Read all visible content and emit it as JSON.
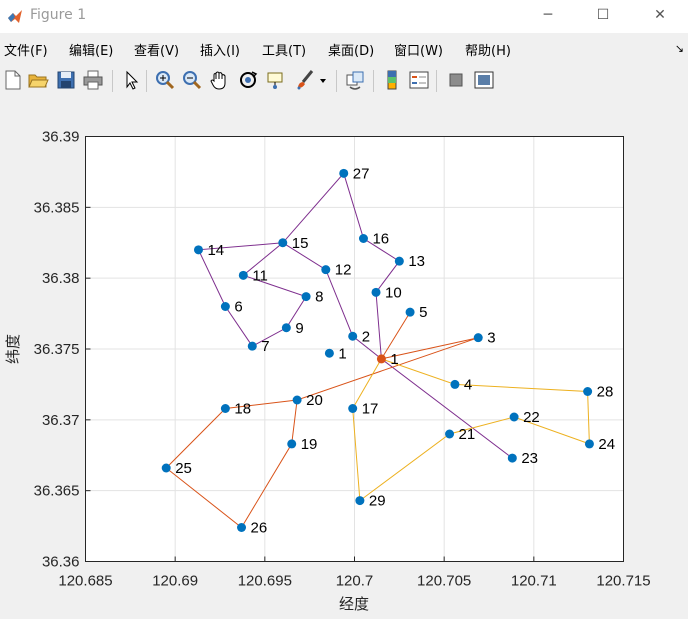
{
  "window": {
    "title": "Figure 1",
    "minimize_glyph": "─",
    "maximize_glyph": "☐",
    "close_glyph": "✕"
  },
  "menu": {
    "items": [
      "文件(F)",
      "编辑(E)",
      "查看(V)",
      "插入(I)",
      "工具(T)",
      "桌面(D)",
      "窗口(W)",
      "帮助(H)"
    ],
    "dock_glyph": "↘"
  },
  "toolbar": {
    "icons": [
      "new-figure-icon",
      "open-file-icon",
      "save-icon",
      "print-icon",
      "edit-plot-arrow-icon",
      "zoom-in-icon",
      "zoom-out-icon",
      "pan-hand-icon",
      "rotate-3d-icon",
      "data-cursor-icon",
      "brush-icon",
      "brush-dropdown-icon",
      "link-plot-icon",
      "colorbar-icon",
      "legend-icon",
      "hide-plot-tools-icon",
      "show-plot-tools-icon"
    ]
  },
  "colors": {
    "route_purple": "#7e2f8e",
    "route_orange": "#d95319",
    "route_yellow": "#edb120",
    "marker_blue": "#0072bd",
    "depot_orange": "#d95319"
  },
  "chart_data": {
    "type": "scatter",
    "xlabel": "经度",
    "ylabel": "纬度",
    "xlim": [
      120.685,
      120.715
    ],
    "ylim": [
      36.36,
      36.39
    ],
    "xticks": [
      "120.685",
      "120.69",
      "120.695",
      "120.7",
      "120.705",
      "120.71",
      "120.715"
    ],
    "yticks": [
      "36.36",
      "36.365",
      "36.37",
      "36.375",
      "36.38",
      "36.385",
      "36.39"
    ],
    "grid": true,
    "depot": {
      "label": "1",
      "x": 120.7015,
      "y": 36.3743
    },
    "points": [
      {
        "label": "1",
        "x": 120.6986,
        "y": 36.3747
      },
      {
        "label": "2",
        "x": 120.6999,
        "y": 36.3759
      },
      {
        "label": "3",
        "x": 120.7069,
        "y": 36.3758
      },
      {
        "label": "4",
        "x": 120.7056,
        "y": 36.3725
      },
      {
        "label": "5",
        "x": 120.7031,
        "y": 36.3776
      },
      {
        "label": "6",
        "x": 120.6928,
        "y": 36.378
      },
      {
        "label": "7",
        "x": 120.6943,
        "y": 36.3752
      },
      {
        "label": "8",
        "x": 120.6973,
        "y": 36.3787
      },
      {
        "label": "9",
        "x": 120.6962,
        "y": 36.3765
      },
      {
        "label": "10",
        "x": 120.7012,
        "y": 36.379
      },
      {
        "label": "11",
        "x": 120.6938,
        "y": 36.3802
      },
      {
        "label": "12",
        "x": 120.6984,
        "y": 36.3806
      },
      {
        "label": "13",
        "x": 120.7025,
        "y": 36.3812
      },
      {
        "label": "14",
        "x": 120.6913,
        "y": 36.382
      },
      {
        "label": "15",
        "x": 120.696,
        "y": 36.3825
      },
      {
        "label": "16",
        "x": 120.7005,
        "y": 36.3828
      },
      {
        "label": "17",
        "x": 120.6999,
        "y": 36.3708
      },
      {
        "label": "18",
        "x": 120.6928,
        "y": 36.3708
      },
      {
        "label": "19",
        "x": 120.6965,
        "y": 36.3683
      },
      {
        "label": "20",
        "x": 120.6968,
        "y": 36.3714
      },
      {
        "label": "21",
        "x": 120.7053,
        "y": 36.369
      },
      {
        "label": "22",
        "x": 120.7089,
        "y": 36.3702
      },
      {
        "label": "23",
        "x": 120.7088,
        "y": 36.3673
      },
      {
        "label": "24",
        "x": 120.7131,
        "y": 36.3683
      },
      {
        "label": "25",
        "x": 120.6895,
        "y": 36.3666
      },
      {
        "label": "26",
        "x": 120.6937,
        "y": 36.3624
      },
      {
        "label": "27",
        "x": 120.6994,
        "y": 36.3874
      },
      {
        "label": "28",
        "x": 120.713,
        "y": 36.372
      },
      {
        "label": "29",
        "x": 120.7003,
        "y": 36.3643
      }
    ],
    "routes": [
      {
        "color": "#7e2f8e",
        "stops": [
          "1",
          "2",
          "12",
          "15",
          "14",
          "6",
          "7",
          "9",
          "8",
          "11",
          "15",
          "27",
          "16",
          "13",
          "10",
          "1",
          "23"
        ]
      },
      {
        "color": "#d95319",
        "stops": [
          "1",
          "5",
          "1",
          "3",
          "20",
          "19",
          "26",
          "25",
          "18",
          "20"
        ]
      },
      {
        "color": "#edb120",
        "stops": [
          "1",
          "4",
          "28",
          "24",
          "22",
          "21",
          "29",
          "17",
          "1",
          "1",
          "17"
        ]
      }
    ]
  }
}
